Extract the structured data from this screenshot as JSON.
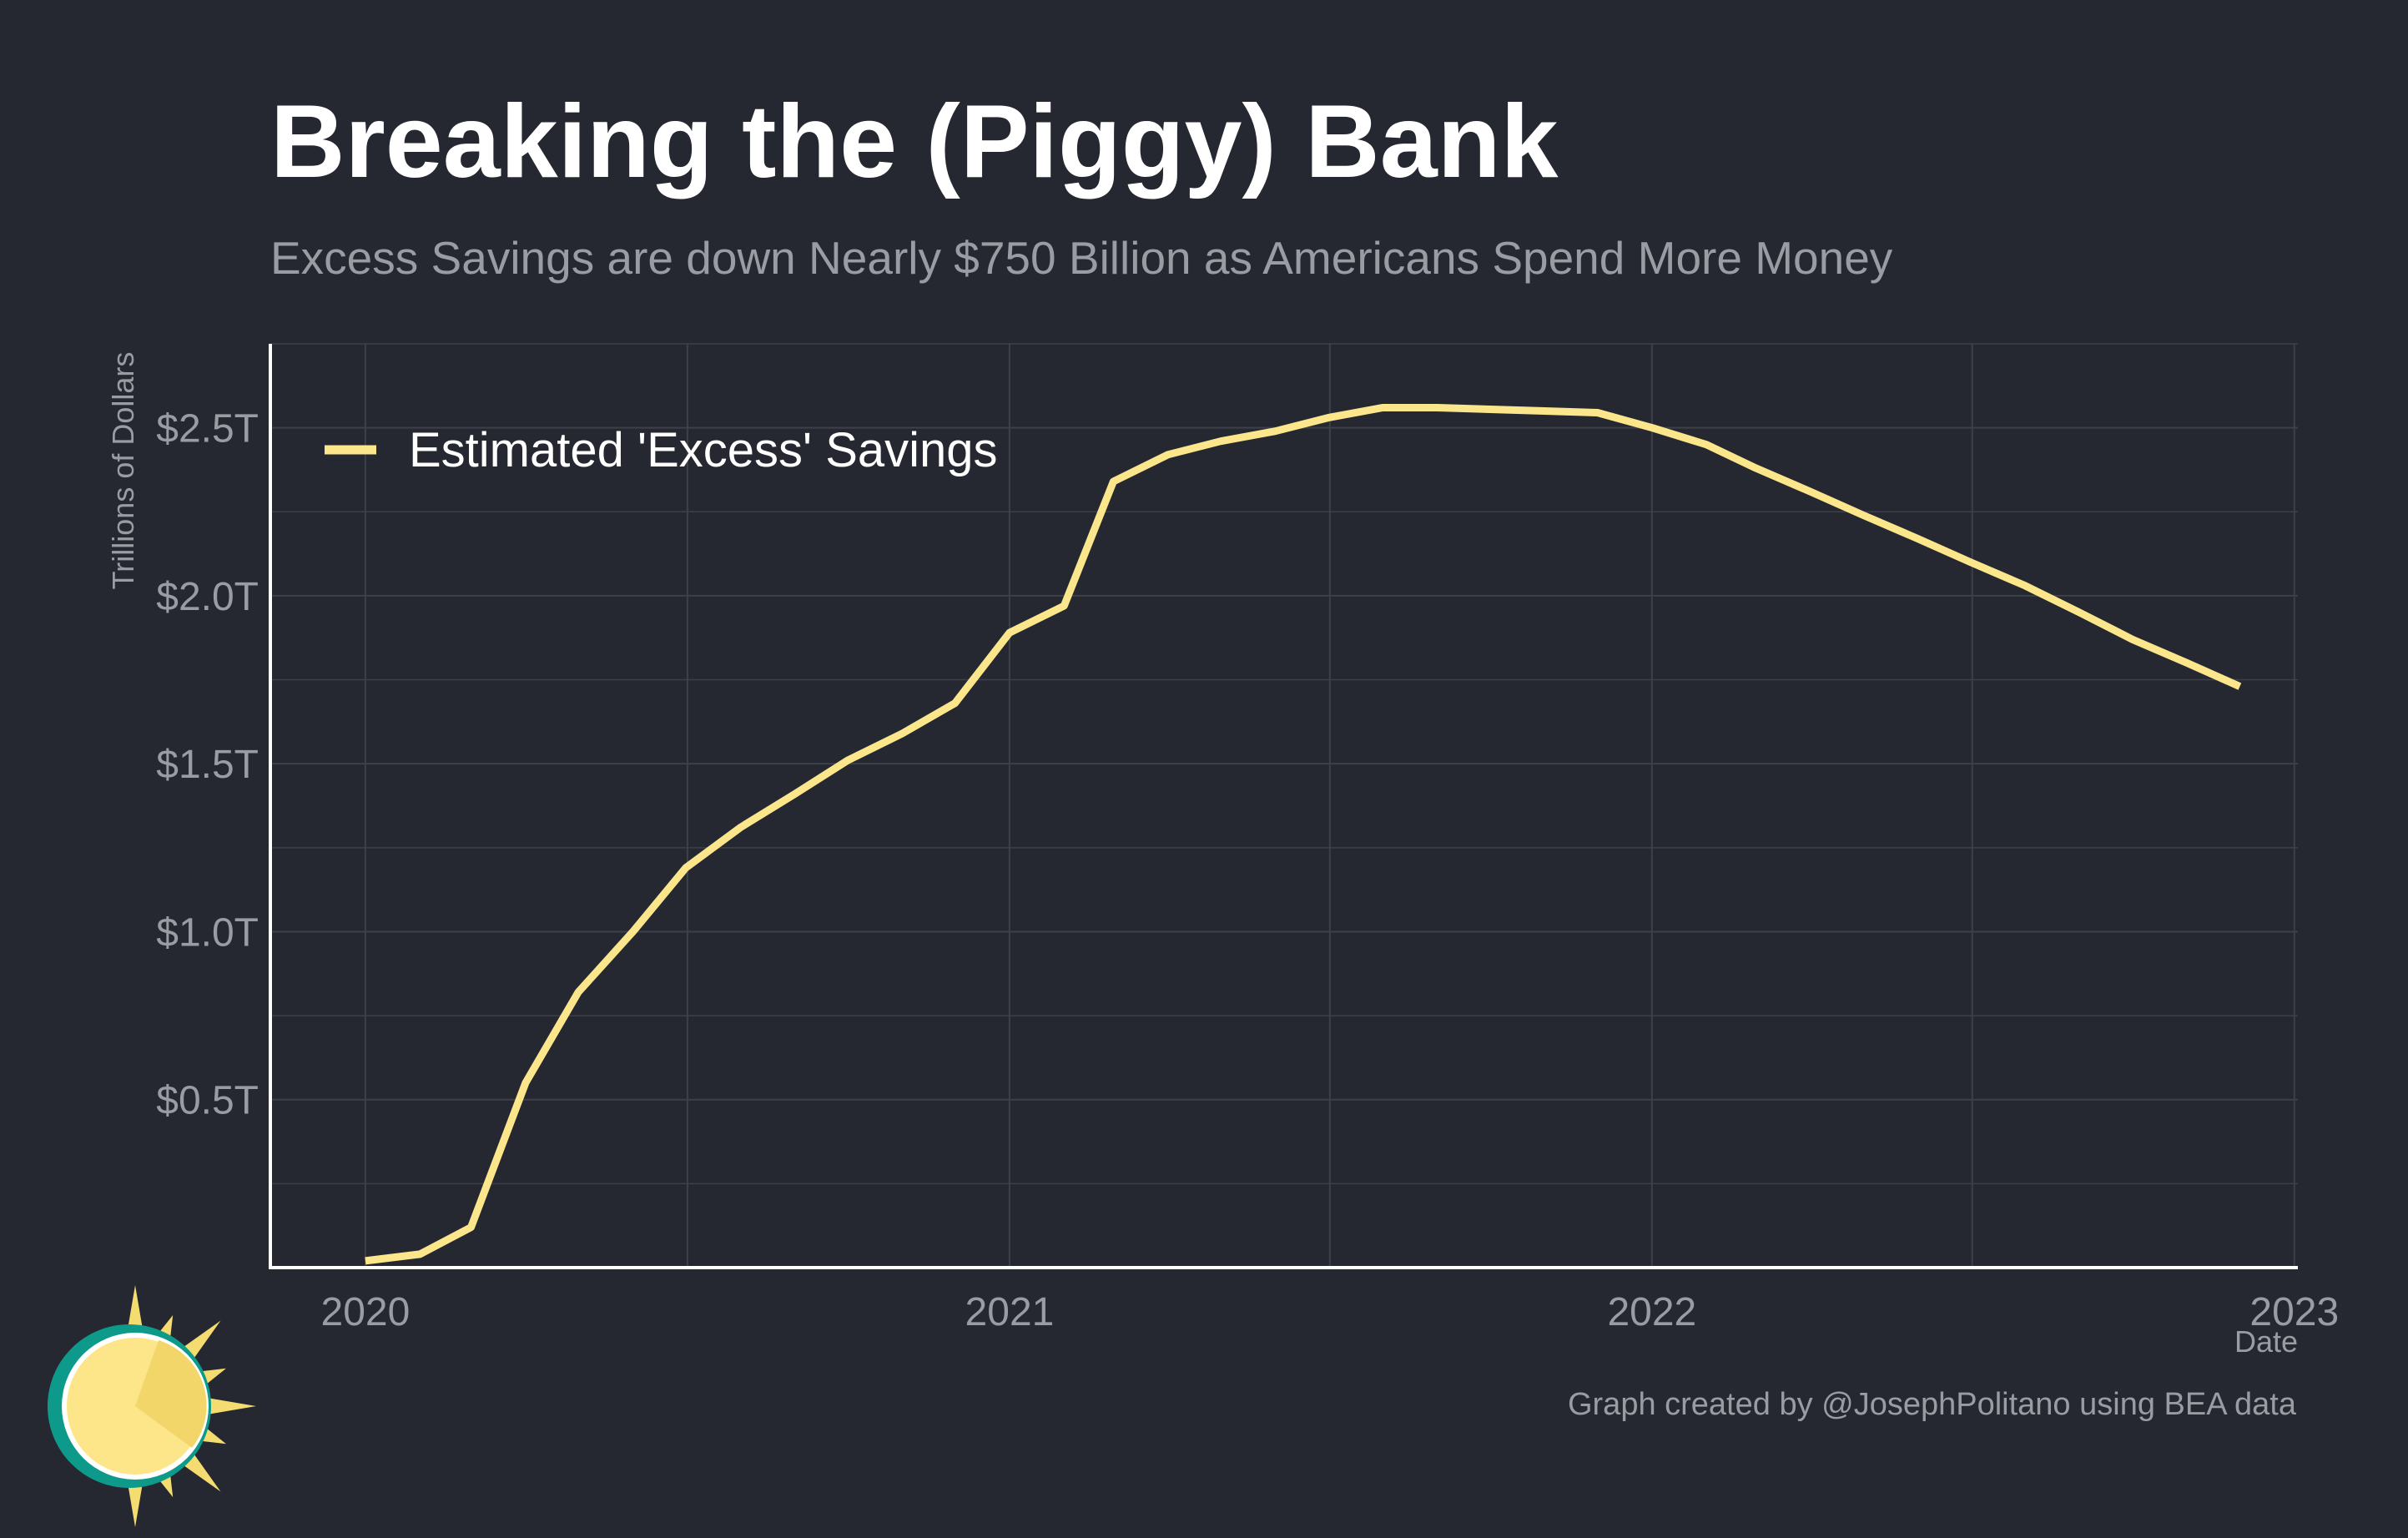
{
  "title": "Breaking the (Piggy) Bank",
  "subtitle": "Excess Savings are down Nearly $750 Billion as Americans Spend More Money",
  "caption": "Graph created by @JosephPolitano using BEA data",
  "colors": {
    "background": "#252830",
    "line": "#FCE68C",
    "grid": "#3d4048",
    "axis": "#ffffff",
    "muted_text": "#9a9ca3",
    "logo_teal": "#0E9A8A",
    "logo_sun": "#F5DC70"
  },
  "icons": {
    "logo": "sun-logo-icon"
  },
  "chart_data": {
    "type": "line",
    "title": "Breaking the (Piggy) Bank",
    "subtitle": "Excess Savings are down Nearly $750 Billion as Americans Spend More Money",
    "xlabel": "Date",
    "ylabel": "Trillions of Dollars",
    "xlim": [
      "2019-11-08",
      "2023-01-03"
    ],
    "ylim": [
      0,
      2.75
    ],
    "x_ticks": [
      {
        "value": "2020-01-01",
        "label": "2020"
      },
      {
        "value": "2021-01-01",
        "label": "2021"
      },
      {
        "value": "2022-01-01",
        "label": "2022"
      },
      {
        "value": "2023-01-01",
        "label": "2023"
      }
    ],
    "y_ticks": [
      {
        "value": 0.5,
        "label": "$0.5T"
      },
      {
        "value": 1.0,
        "label": "$1.0T"
      },
      {
        "value": 1.5,
        "label": "$1.5T"
      },
      {
        "value": 2.0,
        "label": "$2.0T"
      },
      {
        "value": 2.5,
        "label": "$2.5T"
      }
    ],
    "grid": true,
    "legend": {
      "placement": "top-left",
      "entries": [
        "Estimated 'Excess' Savings"
      ]
    },
    "series": [
      {
        "name": "Estimated 'Excess' Savings",
        "x": [
          "2020-01-01",
          "2020-02-01",
          "2020-03-01",
          "2020-04-01",
          "2020-05-01",
          "2020-06-01",
          "2020-07-01",
          "2020-08-01",
          "2020-09-01",
          "2020-10-01",
          "2020-11-01",
          "2020-12-01",
          "2021-01-01",
          "2021-02-01",
          "2021-03-01",
          "2021-04-01",
          "2021-05-01",
          "2021-06-01",
          "2021-07-01",
          "2021-08-01",
          "2021-09-01",
          "2021-10-01",
          "2021-11-01",
          "2021-12-01",
          "2022-01-01",
          "2022-02-01",
          "2022-03-01",
          "2022-04-01",
          "2022-05-01",
          "2022-06-01",
          "2022-07-01",
          "2022-08-01",
          "2022-09-01",
          "2022-10-01",
          "2022-11-01",
          "2022-12-01"
        ],
        "values": [
          0.02,
          0.04,
          0.12,
          0.55,
          0.82,
          1.0,
          1.19,
          1.31,
          1.41,
          1.51,
          1.59,
          1.68,
          1.89,
          1.97,
          2.34,
          2.42,
          2.46,
          2.49,
          2.53,
          2.56,
          2.56,
          2.555,
          2.55,
          2.545,
          2.5,
          2.45,
          2.38,
          2.31,
          2.24,
          2.17,
          2.1,
          2.03,
          1.95,
          1.87,
          1.8,
          1.73
        ]
      }
    ]
  }
}
